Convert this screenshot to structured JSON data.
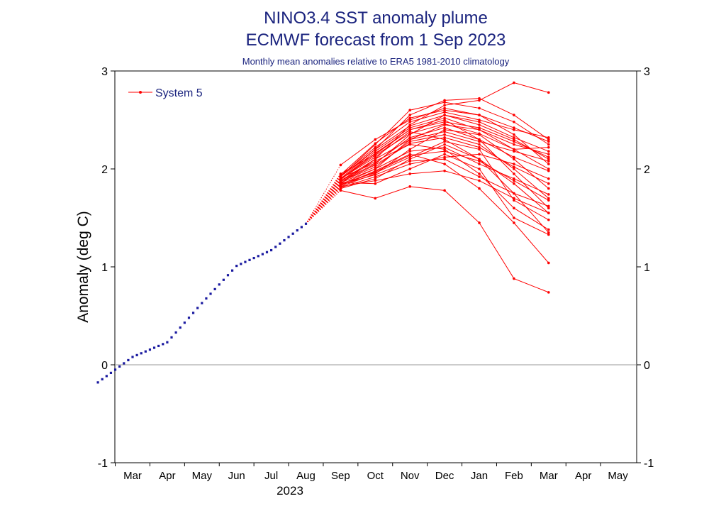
{
  "chart_data": {
    "type": "line",
    "title": "NINO3.4 SST anomaly plume",
    "subtitle": "ECMWF forecast from 1 Sep 2023",
    "caption": "Monthly mean anomalies relative to ERA5 1981-2010 climatology",
    "ylabel": "Anomaly (deg C)",
    "year_label": "2023",
    "ylim": [
      -1,
      3
    ],
    "y_ticks": [
      "-1",
      "0",
      "1",
      "2",
      "3"
    ],
    "x_ticks": [
      "Mar",
      "Apr",
      "May",
      "Jun",
      "Jul",
      "Aug",
      "Sep",
      "Oct",
      "Nov",
      "Dec",
      "Jan",
      "Feb",
      "Mar",
      "Apr",
      "May"
    ],
    "grid": false,
    "zero_line": true,
    "legend": {
      "label": "System 5",
      "placement": "top-left"
    },
    "colors": {
      "observed": "#1a1aa0",
      "forecast": "#ff0000",
      "text": "#1a237e"
    },
    "observed": {
      "x": [
        "Feb 2023",
        "Mar 2023",
        "Apr 2023",
        "May 2023",
        "Jun 2023",
        "Jul 2023",
        "Aug 2023"
      ],
      "anomaly": [
        -0.18,
        0.08,
        0.23,
        0.63,
        1.01,
        1.17,
        1.44
      ]
    },
    "forecast": {
      "start": "1 Sep 2023",
      "x": [
        "Sep 2023",
        "Oct 2023",
        "Nov 2023",
        "Dec 2023",
        "Jan 2024",
        "Feb 2024",
        "Mar 2024"
      ],
      "members": [
        [
          1.88,
          2.05,
          2.35,
          2.55,
          2.45,
          2.3,
          2.1
        ],
        [
          1.85,
          2.1,
          2.45,
          2.65,
          2.7,
          2.88,
          2.78
        ],
        [
          1.9,
          2.2,
          2.55,
          2.7,
          2.72,
          2.55,
          2.3
        ],
        [
          1.82,
          1.95,
          2.2,
          2.4,
          2.35,
          2.1,
          1.8
        ],
        [
          1.92,
          2.25,
          2.6,
          2.68,
          2.62,
          2.48,
          2.25
        ],
        [
          1.8,
          1.9,
          2.1,
          2.25,
          2.1,
          1.75,
          1.35
        ],
        [
          1.95,
          2.15,
          2.4,
          2.5,
          2.3,
          1.95,
          1.6
        ],
        [
          2.04,
          2.3,
          2.5,
          2.62,
          2.55,
          2.35,
          2.05
        ],
        [
          1.86,
          1.85,
          2.0,
          2.15,
          2.0,
          1.5,
          1.33
        ],
        [
          1.78,
          1.7,
          1.82,
          1.78,
          1.45,
          0.88,
          0.74
        ],
        [
          1.84,
          2.0,
          2.3,
          2.45,
          2.4,
          2.2,
          2.0
        ],
        [
          1.9,
          2.12,
          2.38,
          2.3,
          2.1,
          1.85,
          1.55
        ],
        [
          1.88,
          2.08,
          2.25,
          2.2,
          1.95,
          1.6,
          1.38
        ],
        [
          1.83,
          1.98,
          2.15,
          2.05,
          1.8,
          1.45,
          1.04
        ],
        [
          1.93,
          2.22,
          2.48,
          2.58,
          2.5,
          2.4,
          2.32
        ],
        [
          1.87,
          2.02,
          2.28,
          2.35,
          2.25,
          2.0,
          1.7
        ],
        [
          1.81,
          1.92,
          2.05,
          2.12,
          2.15,
          2.05,
          1.9
        ],
        [
          1.89,
          2.18,
          2.42,
          2.52,
          2.4,
          2.25,
          2.15
        ],
        [
          1.91,
          2.06,
          2.32,
          2.42,
          2.3,
          2.12,
          1.98
        ],
        [
          1.85,
          1.96,
          2.12,
          2.28,
          2.2,
          1.68,
          1.48
        ],
        [
          1.94,
          2.26,
          2.52,
          2.6,
          2.55,
          2.42,
          2.28
        ],
        [
          1.82,
          1.88,
          1.95,
          1.98,
          1.88,
          1.7,
          1.55
        ],
        [
          1.88,
          2.1,
          2.3,
          2.38,
          2.28,
          2.18,
          2.08
        ],
        [
          1.86,
          2.0,
          2.18,
          2.22,
          2.05,
          1.9,
          1.74
        ],
        [
          1.9,
          2.14,
          2.36,
          2.46,
          2.36,
          2.2,
          2.22
        ],
        [
          1.84,
          1.94,
          2.08,
          2.1,
          1.92,
          1.75,
          1.62
        ],
        [
          1.92,
          2.2,
          2.44,
          2.55,
          2.48,
          2.32,
          2.18
        ],
        [
          1.87,
          2.04,
          2.26,
          2.32,
          2.22,
          2.02,
          1.85
        ],
        [
          1.89,
          2.16,
          2.4,
          2.48,
          2.42,
          2.28,
          2.12
        ],
        [
          1.83,
          1.97,
          2.14,
          2.18,
          2.08,
          1.88,
          1.68
        ]
      ]
    }
  }
}
